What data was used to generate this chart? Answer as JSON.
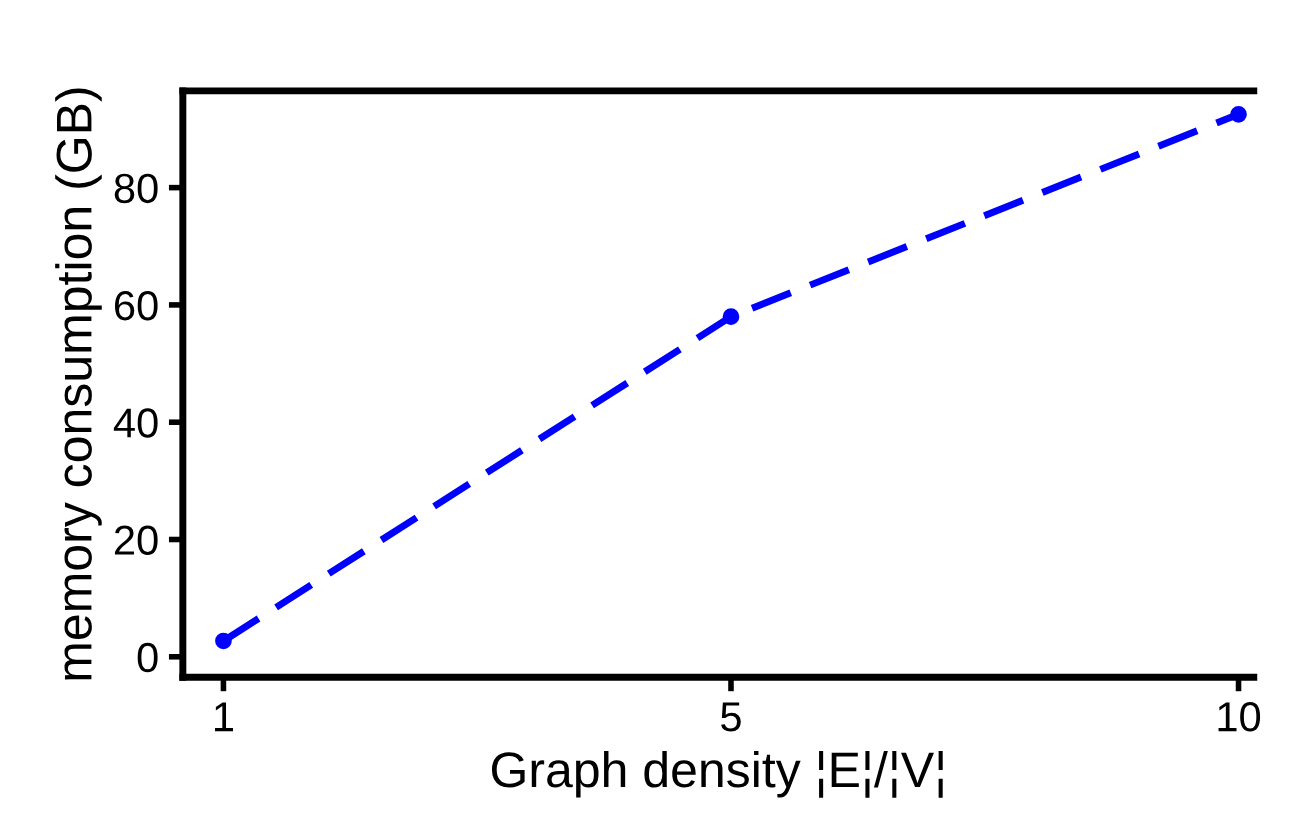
{
  "chart_data": {
    "type": "line",
    "xlabel": "Graph density ¦E¦/¦V¦",
    "ylabel": "memory consumption (GB)",
    "categories": [
      "1",
      "5",
      "10"
    ],
    "series": [
      {
        "color": "#0000ff",
        "values": [
          2.7,
          58,
          92.5
        ]
      }
    ],
    "ylim": [
      -3.5,
      96.5
    ],
    "yticks": [
      0,
      20,
      40,
      60,
      80
    ],
    "grid": false,
    "marker": "circle",
    "line_style": "dashed"
  }
}
